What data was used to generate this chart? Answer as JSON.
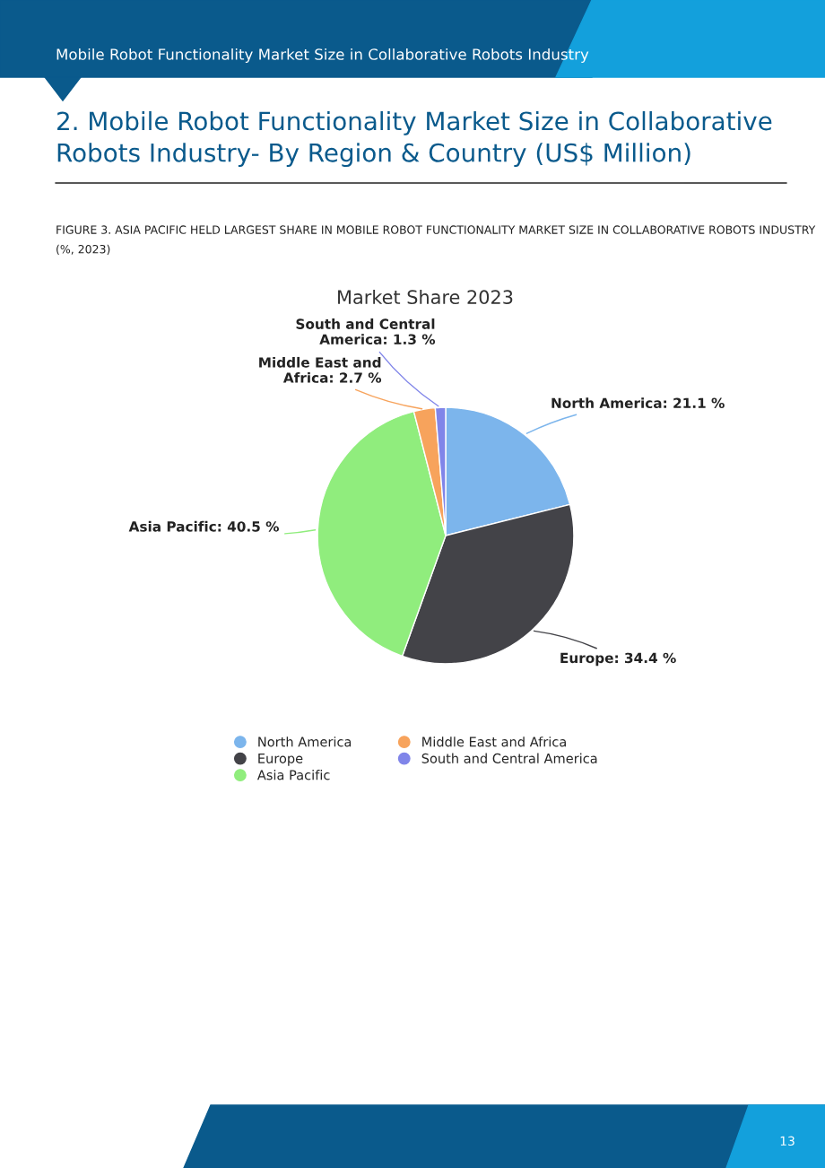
{
  "chart_data": {
    "type": "pie",
    "title": "Market Share 2023",
    "categories": [
      "North America",
      "Europe",
      "Asia Pacific",
      "Middle East and Africa",
      "South and Central America"
    ],
    "values": [
      21.1,
      34.4,
      40.5,
      2.7,
      1.3
    ],
    "colors": [
      "#7cb5ec",
      "#434348",
      "#90ed7d",
      "#f7a35c",
      "#8085e9"
    ],
    "value_labels": [
      "North America: 21.1 %",
      "Europe: 34.4 %",
      "Asia Pacific: 40.5 %",
      "Middle East and\nAfrica: 2.7 %",
      "South and Central\nAmerica: 1.3 %"
    ],
    "legend": "bottom",
    "annotations": [
      "Mobile Robot Functionality Market Size in Collaborative Robots Industry",
      "2. Mobile Robot Functionality Market Size in Collaborative Robots Industry- By Region & Country (US$ Million)",
      "FIGURE 3. ASIA PACIFIC HELD LARGEST SHARE IN MOBILE ROBOT FUNCTIONALITY MARKET SIZE IN COLLABORATIVE ROBOTS INDUSTRY (%, 2023)",
      "13"
    ]
  }
}
